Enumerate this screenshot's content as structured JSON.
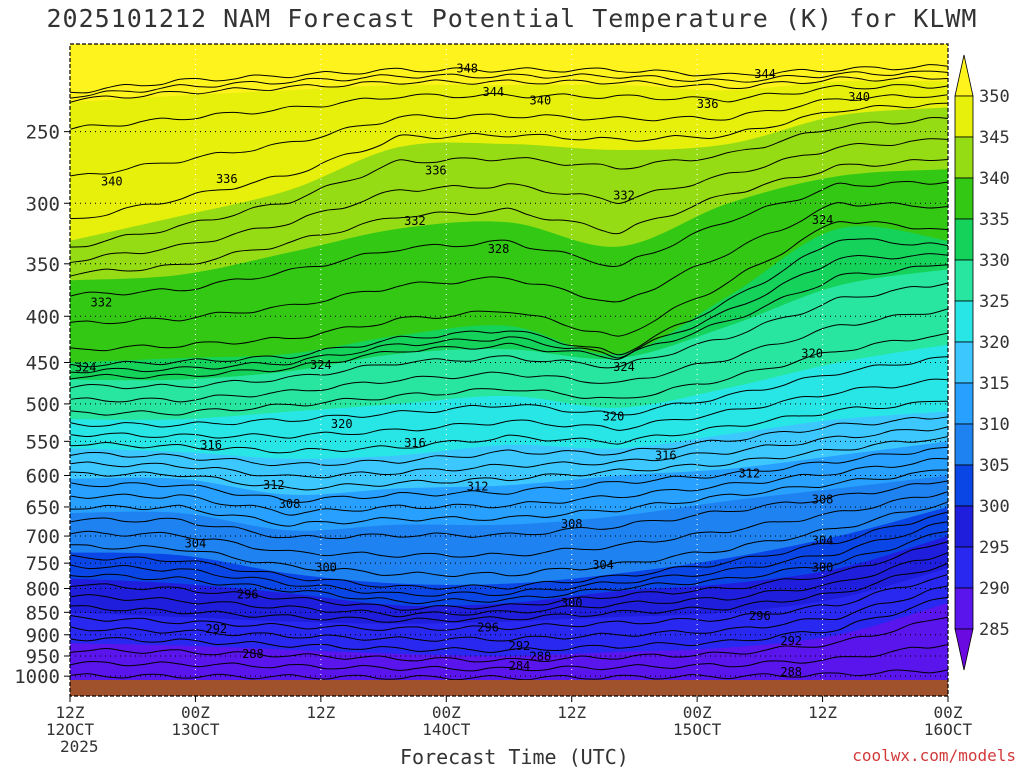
{
  "title": "2025101212 NAM Forecast Potential Temperature (K) for KLWM",
  "xaxis_title": "Forecast Time (UTC)",
  "credit": "coolwx.com/models",
  "chart_data": {
    "type": "contour",
    "y_axis": {
      "ticks": [
        250,
        300,
        350,
        400,
        450,
        500,
        550,
        600,
        650,
        700,
        750,
        800,
        850,
        900,
        950,
        1000
      ],
      "range": [
        1015,
        200
      ],
      "scale": "pressure"
    },
    "x_axis": {
      "ticks": [
        {
          "hour": 0,
          "line1": "12Z",
          "line2": "12OCT",
          "line3": "2025"
        },
        {
          "hour": 12,
          "line1": "00Z",
          "line2": "13OCT",
          "line3": ""
        },
        {
          "hour": 24,
          "line1": "12Z",
          "line2": "",
          "line3": ""
        },
        {
          "hour": 36,
          "line1": "00Z",
          "line2": "14OCT",
          "line3": ""
        },
        {
          "hour": 48,
          "line1": "12Z",
          "line2": "",
          "line3": ""
        },
        {
          "hour": 60,
          "line1": "00Z",
          "line2": "15OCT",
          "line3": ""
        },
        {
          "hour": 72,
          "line1": "12Z",
          "line2": "",
          "line3": ""
        },
        {
          "hour": 84,
          "line1": "00Z",
          "line2": "16OCT",
          "line3": ""
        }
      ],
      "range": [
        0,
        84
      ]
    },
    "colorbar": {
      "labels": [
        285,
        290,
        295,
        300,
        305,
        310,
        315,
        320,
        325,
        330,
        335,
        340,
        345,
        350
      ],
      "colors": [
        "#6a0ae0",
        "#5a14ec",
        "#2828f0",
        "#1e1edc",
        "#0a46e6",
        "#1e82f0",
        "#28a0ff",
        "#3cc8ff",
        "#28e6e6",
        "#28e6a0",
        "#14d25a",
        "#32c814",
        "#96dc14",
        "#e6f00a",
        "#fff31e"
      ]
    },
    "fill_bands": [
      {
        "color": "#fff31e",
        "p_levels": [
          225,
          218,
          215,
          212,
          212,
          212,
          215,
          212,
          210
        ]
      },
      {
        "color": "#e6f00a",
        "p_levels": [
          232,
          228,
          225,
          222,
          222,
          222,
          225,
          220,
          220
        ]
      },
      {
        "color": "#96dc14",
        "p_levels": [
          330,
          310,
          290,
          260,
          258,
          262,
          258,
          240,
          235
        ]
      },
      {
        "color": "#32c814",
        "p_levels": [
          365,
          360,
          340,
          320,
          315,
          335,
          300,
          280,
          275
        ]
      },
      {
        "color": "#14d25a",
        "p_levels": [
          450,
          445,
          440,
          420,
          410,
          440,
          380,
          320,
          330
        ]
      },
      {
        "color": "#28e6a0",
        "p_levels": [
          470,
          470,
          460,
          440,
          435,
          445,
          410,
          370,
          355
        ]
      },
      {
        "color": "#28e6e6",
        "p_levels": [
          520,
          520,
          510,
          500,
          490,
          505,
          480,
          450,
          430
        ]
      },
      {
        "color": "#3cc8ff",
        "p_levels": [
          560,
          565,
          575,
          570,
          555,
          560,
          540,
          520,
          510
        ]
      },
      {
        "color": "#28a0ff",
        "p_levels": [
          605,
          605,
          630,
          620,
          615,
          600,
          590,
          570,
          550
        ]
      },
      {
        "color": "#1e82f0",
        "p_levels": [
          660,
          660,
          690,
          680,
          680,
          665,
          640,
          620,
          600
        ]
      },
      {
        "color": "#0a46e6",
        "p_levels": [
          730,
          735,
          770,
          790,
          790,
          770,
          740,
          700,
          650
        ]
      },
      {
        "color": "#1e1edc",
        "p_levels": [
          780,
          790,
          810,
          835,
          830,
          805,
          790,
          760,
          700
        ]
      },
      {
        "color": "#2828f0",
        "p_levels": [
          850,
          860,
          870,
          875,
          870,
          860,
          850,
          820,
          760
        ]
      },
      {
        "color": "#5a14ec",
        "p_levels": [
          920,
          925,
          935,
          945,
          950,
          940,
          930,
          900,
          830
        ]
      },
      {
        "color": "#6a0ae0",
        "p_levels": [
          1015,
          1015,
          1015,
          1015,
          1015,
          1015,
          1015,
          1015,
          1015
        ]
      }
    ],
    "contour_labels": [
      {
        "text": "348",
        "hour": 38,
        "p": 213
      },
      {
        "text": "344",
        "hour": 40.5,
        "p": 226
      },
      {
        "text": "340",
        "hour": 45,
        "p": 231
      },
      {
        "text": "344",
        "hour": 66.5,
        "p": 216
      },
      {
        "text": "340",
        "hour": 75.5,
        "p": 229
      },
      {
        "text": "336",
        "hour": 61,
        "p": 233
      },
      {
        "text": "340",
        "hour": 4,
        "p": 284
      },
      {
        "text": "336",
        "hour": 15,
        "p": 282
      },
      {
        "text": "336",
        "hour": 35,
        "p": 276
      },
      {
        "text": "332",
        "hour": 53,
        "p": 294
      },
      {
        "text": "324",
        "hour": 72,
        "p": 313
      },
      {
        "text": "332",
        "hour": 33,
        "p": 314
      },
      {
        "text": "328",
        "hour": 41,
        "p": 337
      },
      {
        "text": "332",
        "hour": 3,
        "p": 386
      },
      {
        "text": "324",
        "hour": 1.5,
        "p": 456
      },
      {
        "text": "324",
        "hour": 24,
        "p": 453
      },
      {
        "text": "324",
        "hour": 53,
        "p": 455
      },
      {
        "text": "320",
        "hour": 71,
        "p": 440
      },
      {
        "text": "320",
        "hour": 26,
        "p": 526
      },
      {
        "text": "320",
        "hour": 52,
        "p": 516
      },
      {
        "text": "316",
        "hour": 13.5,
        "p": 555
      },
      {
        "text": "316",
        "hour": 33,
        "p": 552
      },
      {
        "text": "316",
        "hour": 57,
        "p": 570
      },
      {
        "text": "312",
        "hour": 19.5,
        "p": 615
      },
      {
        "text": "312",
        "hour": 39,
        "p": 617
      },
      {
        "text": "312",
        "hour": 65,
        "p": 597
      },
      {
        "text": "308",
        "hour": 21,
        "p": 645
      },
      {
        "text": "308",
        "hour": 48,
        "p": 679
      },
      {
        "text": "308",
        "hour": 72,
        "p": 638
      },
      {
        "text": "304",
        "hour": 12,
        "p": 713
      },
      {
        "text": "304",
        "hour": 51,
        "p": 754
      },
      {
        "text": "304",
        "hour": 72,
        "p": 708
      },
      {
        "text": "300",
        "hour": 24.5,
        "p": 758
      },
      {
        "text": "300",
        "hour": 48,
        "p": 830
      },
      {
        "text": "300",
        "hour": 72,
        "p": 758
      },
      {
        "text": "296",
        "hour": 17,
        "p": 812
      },
      {
        "text": "296",
        "hour": 40,
        "p": 883
      },
      {
        "text": "296",
        "hour": 66,
        "p": 858
      },
      {
        "text": "292",
        "hour": 14,
        "p": 887
      },
      {
        "text": "292",
        "hour": 43,
        "p": 926
      },
      {
        "text": "292",
        "hour": 69,
        "p": 914
      },
      {
        "text": "288",
        "hour": 17.5,
        "p": 945
      },
      {
        "text": "288",
        "hour": 45,
        "p": 951
      },
      {
        "text": "288",
        "hour": 69,
        "p": 990
      },
      {
        "text": "284",
        "hour": 43,
        "p": 975
      }
    ]
  }
}
